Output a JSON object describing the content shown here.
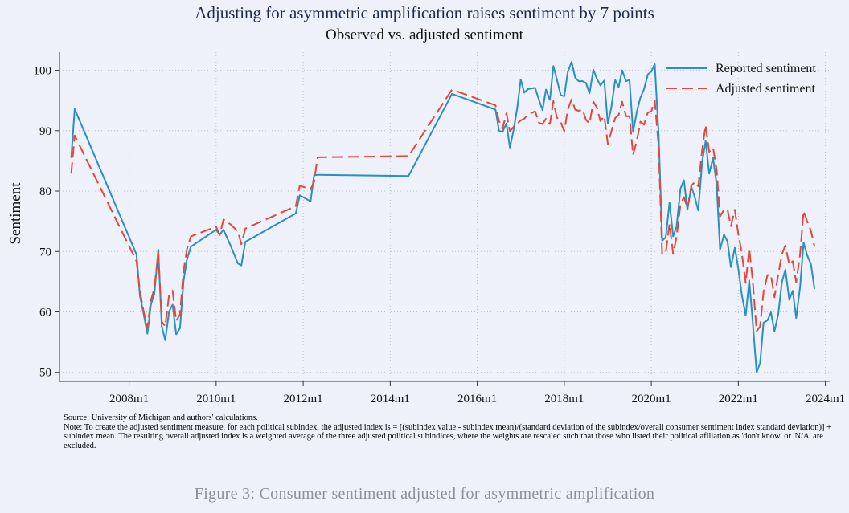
{
  "caption": "Figure 3: Consumer sentiment adjusted for asymmetric amplification",
  "notes": {
    "source": "Source: University of Michigan and authors' calculations.",
    "note": "Note: To create the adjusted sentiment measure, for each political subindex, the adjusted index is = [(subindex value - subindex mean)/(standard deviation of the subindex/overall consumer sentiment index standard deviation)] + subindex mean. The resulting overall adjusted index is a weighted average of the three adjusted political subindices, where the weights are rescaled such that those who listed their political afiliation as 'don't know' or 'N/A' are excluded."
  },
  "colors": {
    "reported": "#2a8fc1",
    "adjusted": "#e04a3c",
    "background": "#eef1fa",
    "grid": "#b9bfcc",
    "axis": "#333333"
  },
  "chart_data": {
    "type": "line",
    "title": "Adjusting for asymmetric amplification raises sentiment by 7 points",
    "subtitle": "Observed vs. adjusted sentiment",
    "xlabel": "",
    "ylabel": "Sentiment",
    "xlim": [
      2006.4,
      2024.1
    ],
    "ylim": [
      48.5,
      103
    ],
    "x_ticks": [
      {
        "value": 2008,
        "label": "2008m1"
      },
      {
        "value": 2010,
        "label": "2010m1"
      },
      {
        "value": 2012,
        "label": "2012m1"
      },
      {
        "value": 2014,
        "label": "2014m1"
      },
      {
        "value": 2016,
        "label": "2016m1"
      },
      {
        "value": 2018,
        "label": "2018m1"
      },
      {
        "value": 2020,
        "label": "2020m1"
      },
      {
        "value": 2022,
        "label": "2022m1"
      },
      {
        "value": 2024,
        "label": "2024m1"
      }
    ],
    "y_ticks": [
      50,
      60,
      70,
      80,
      90,
      100
    ],
    "grid": true,
    "legend": "top-right",
    "series": [
      {
        "name": "Reported sentiment",
        "style": "solid",
        "points": [
          [
            2006.67,
            85.5
          ],
          [
            2006.75,
            93.6
          ],
          [
            2008.17,
            69.5
          ],
          [
            2008.25,
            62.6
          ],
          [
            2008.33,
            59.8
          ],
          [
            2008.42,
            56.4
          ],
          [
            2008.5,
            61.2
          ],
          [
            2008.58,
            63.0
          ],
          [
            2008.67,
            70.3
          ],
          [
            2008.75,
            57.6
          ],
          [
            2008.83,
            55.3
          ],
          [
            2008.92,
            60.1
          ],
          [
            2009.0,
            61.2
          ],
          [
            2009.08,
            56.3
          ],
          [
            2009.17,
            57.3
          ],
          [
            2009.25,
            65.1
          ],
          [
            2009.33,
            68.7
          ],
          [
            2009.42,
            70.8
          ],
          [
            2010.0,
            73.6
          ],
          [
            2010.08,
            72.8
          ],
          [
            2010.17,
            73.6
          ],
          [
            2010.33,
            71.0
          ],
          [
            2010.5,
            68.0
          ],
          [
            2010.58,
            67.7
          ],
          [
            2010.67,
            71.6
          ],
          [
            2011.83,
            76.3
          ],
          [
            2011.92,
            79.3
          ],
          [
            2012.17,
            78.3
          ],
          [
            2012.25,
            82.6
          ],
          [
            2012.33,
            82.7
          ],
          [
            2014.42,
            82.5
          ],
          [
            2015.42,
            96.1
          ],
          [
            2016.42,
            93.5
          ],
          [
            2016.5,
            90.0
          ],
          [
            2016.58,
            89.8
          ],
          [
            2016.67,
            91.2
          ],
          [
            2016.75,
            87.2
          ],
          [
            2016.83,
            89.9
          ],
          [
            2016.92,
            93.8
          ],
          [
            2017.0,
            98.5
          ],
          [
            2017.08,
            96.3
          ],
          [
            2017.17,
            96.9
          ],
          [
            2017.33,
            97.1
          ],
          [
            2017.42,
            95.1
          ],
          [
            2017.5,
            93.4
          ],
          [
            2017.58,
            96.8
          ],
          [
            2017.67,
            95.1
          ],
          [
            2017.75,
            100.7
          ],
          [
            2017.83,
            98.5
          ],
          [
            2017.92,
            95.9
          ],
          [
            2018.0,
            95.7
          ],
          [
            2018.08,
            99.7
          ],
          [
            2018.17,
            101.4
          ],
          [
            2018.25,
            98.8
          ],
          [
            2018.33,
            98.2
          ],
          [
            2018.42,
            98.2
          ],
          [
            2018.5,
            97.9
          ],
          [
            2018.58,
            96.2
          ],
          [
            2018.67,
            100.1
          ],
          [
            2018.75,
            98.6
          ],
          [
            2018.83,
            97.5
          ],
          [
            2018.92,
            98.3
          ],
          [
            2019.0,
            91.2
          ],
          [
            2019.08,
            93.8
          ],
          [
            2019.17,
            98.4
          ],
          [
            2019.25,
            97.2
          ],
          [
            2019.33,
            100.0
          ],
          [
            2019.42,
            98.2
          ],
          [
            2019.5,
            98.4
          ],
          [
            2019.58,
            89.8
          ],
          [
            2019.67,
            93.2
          ],
          [
            2019.75,
            95.5
          ],
          [
            2019.83,
            96.8
          ],
          [
            2019.92,
            99.3
          ],
          [
            2020.0,
            99.8
          ],
          [
            2020.08,
            101.0
          ],
          [
            2020.17,
            89.1
          ],
          [
            2020.25,
            71.8
          ],
          [
            2020.33,
            72.3
          ],
          [
            2020.42,
            78.1
          ],
          [
            2020.5,
            72.5
          ],
          [
            2020.58,
            74.1
          ],
          [
            2020.67,
            80.4
          ],
          [
            2020.75,
            81.8
          ],
          [
            2020.83,
            76.9
          ],
          [
            2020.92,
            80.7
          ],
          [
            2021.0,
            79.0
          ],
          [
            2021.08,
            76.8
          ],
          [
            2021.17,
            84.9
          ],
          [
            2021.25,
            88.3
          ],
          [
            2021.33,
            82.9
          ],
          [
            2021.42,
            85.5
          ],
          [
            2021.5,
            81.2
          ],
          [
            2021.58,
            70.3
          ],
          [
            2021.67,
            72.8
          ],
          [
            2021.75,
            71.7
          ],
          [
            2021.83,
            67.4
          ],
          [
            2021.92,
            70.6
          ],
          [
            2022.0,
            67.2
          ],
          [
            2022.08,
            62.8
          ],
          [
            2022.17,
            59.4
          ],
          [
            2022.25,
            65.2
          ],
          [
            2022.33,
            58.4
          ],
          [
            2022.42,
            50.0
          ],
          [
            2022.5,
            51.5
          ],
          [
            2022.58,
            58.2
          ],
          [
            2022.67,
            58.6
          ],
          [
            2022.75,
            59.9
          ],
          [
            2022.83,
            56.8
          ],
          [
            2022.92,
            59.7
          ],
          [
            2023.0,
            64.9
          ],
          [
            2023.08,
            67.0
          ],
          [
            2023.17,
            62.0
          ],
          [
            2023.25,
            63.5
          ],
          [
            2023.33,
            59.0
          ],
          [
            2023.42,
            64.2
          ],
          [
            2023.5,
            71.5
          ],
          [
            2023.58,
            69.4
          ],
          [
            2023.67,
            67.9
          ],
          [
            2023.75,
            63.8
          ]
        ]
      },
      {
        "name": "Adjusted sentiment",
        "style": "dashed",
        "points": [
          [
            2006.67,
            82.9
          ],
          [
            2006.75,
            89.2
          ],
          [
            2008.17,
            68.4
          ],
          [
            2008.25,
            63.4
          ],
          [
            2008.33,
            60.2
          ],
          [
            2008.42,
            57.3
          ],
          [
            2008.5,
            61.9
          ],
          [
            2008.58,
            63.9
          ],
          [
            2008.67,
            69.8
          ],
          [
            2008.75,
            58.4
          ],
          [
            2008.83,
            57.6
          ],
          [
            2008.92,
            62.9
          ],
          [
            2009.0,
            63.5
          ],
          [
            2009.08,
            58.5
          ],
          [
            2009.17,
            59.6
          ],
          [
            2009.25,
            66.8
          ],
          [
            2009.33,
            70.4
          ],
          [
            2009.42,
            72.5
          ],
          [
            2010.0,
            74.1
          ],
          [
            2010.08,
            72.7
          ],
          [
            2010.17,
            75.3
          ],
          [
            2010.33,
            74.5
          ],
          [
            2010.5,
            73.3
          ],
          [
            2010.58,
            71.2
          ],
          [
            2010.67,
            73.8
          ],
          [
            2011.83,
            77.5
          ],
          [
            2011.92,
            80.9
          ],
          [
            2012.17,
            80.3
          ],
          [
            2012.25,
            81.5
          ],
          [
            2012.33,
            85.6
          ],
          [
            2014.42,
            85.8
          ],
          [
            2015.42,
            96.8
          ],
          [
            2016.42,
            94.2
          ],
          [
            2016.5,
            91.6
          ],
          [
            2016.58,
            90.3
          ],
          [
            2016.67,
            92.9
          ],
          [
            2016.75,
            89.9
          ],
          [
            2016.83,
            90.6
          ],
          [
            2016.92,
            91.2
          ],
          [
            2017.0,
            91.7
          ],
          [
            2017.08,
            92.0
          ],
          [
            2017.17,
            92.7
          ],
          [
            2017.33,
            93.2
          ],
          [
            2017.42,
            91.3
          ],
          [
            2017.5,
            91.1
          ],
          [
            2017.58,
            92.0
          ],
          [
            2017.67,
            91.1
          ],
          [
            2017.75,
            94.9
          ],
          [
            2017.83,
            92.2
          ],
          [
            2017.92,
            91.4
          ],
          [
            2018.0,
            89.9
          ],
          [
            2018.08,
            93.5
          ],
          [
            2018.17,
            95.2
          ],
          [
            2018.25,
            93.5
          ],
          [
            2018.33,
            93.3
          ],
          [
            2018.42,
            93.5
          ],
          [
            2018.5,
            91.8
          ],
          [
            2018.58,
            91.2
          ],
          [
            2018.67,
            94.8
          ],
          [
            2018.75,
            93.8
          ],
          [
            2018.83,
            91.6
          ],
          [
            2018.92,
            92.4
          ],
          [
            2019.0,
            87.8
          ],
          [
            2019.08,
            89.8
          ],
          [
            2019.17,
            92.1
          ],
          [
            2019.25,
            92.6
          ],
          [
            2019.33,
            94.8
          ],
          [
            2019.42,
            92.4
          ],
          [
            2019.5,
            92.4
          ],
          [
            2019.58,
            86.0
          ],
          [
            2019.67,
            88.4
          ],
          [
            2019.75,
            91.5
          ],
          [
            2019.83,
            91.0
          ],
          [
            2019.92,
            93.0
          ],
          [
            2020.0,
            93.2
          ],
          [
            2020.08,
            95.0
          ],
          [
            2020.17,
            87.2
          ],
          [
            2020.25,
            69.6
          ],
          [
            2020.33,
            69.8
          ],
          [
            2020.42,
            74.6
          ],
          [
            2020.5,
            69.6
          ],
          [
            2020.58,
            72.4
          ],
          [
            2020.67,
            77.8
          ],
          [
            2020.75,
            79.0
          ],
          [
            2020.83,
            77.1
          ],
          [
            2020.92,
            80.9
          ],
          [
            2021.0,
            81.5
          ],
          [
            2021.08,
            80.8
          ],
          [
            2021.17,
            86.9
          ],
          [
            2021.25,
            90.9
          ],
          [
            2021.33,
            86.5
          ],
          [
            2021.42,
            87.2
          ],
          [
            2021.5,
            83.6
          ],
          [
            2021.58,
            75.8
          ],
          [
            2021.67,
            76.9
          ],
          [
            2021.75,
            77.0
          ],
          [
            2021.83,
            74.2
          ],
          [
            2021.92,
            76.9
          ],
          [
            2022.0,
            72.9
          ],
          [
            2022.08,
            69.7
          ],
          [
            2022.17,
            64.8
          ],
          [
            2022.25,
            70.5
          ],
          [
            2022.33,
            65.2
          ],
          [
            2022.42,
            56.8
          ],
          [
            2022.5,
            57.6
          ],
          [
            2022.58,
            63.3
          ],
          [
            2022.67,
            66.1
          ],
          [
            2022.75,
            66.1
          ],
          [
            2022.83,
            62.4
          ],
          [
            2022.92,
            66.3
          ],
          [
            2023.0,
            69.5
          ],
          [
            2023.08,
            71.0
          ],
          [
            2023.17,
            67.8
          ],
          [
            2023.25,
            68.4
          ],
          [
            2023.33,
            64.9
          ],
          [
            2023.42,
            69.6
          ],
          [
            2023.5,
            76.7
          ],
          [
            2023.58,
            75.0
          ],
          [
            2023.67,
            73.4
          ],
          [
            2023.75,
            70.8
          ]
        ]
      }
    ]
  }
}
